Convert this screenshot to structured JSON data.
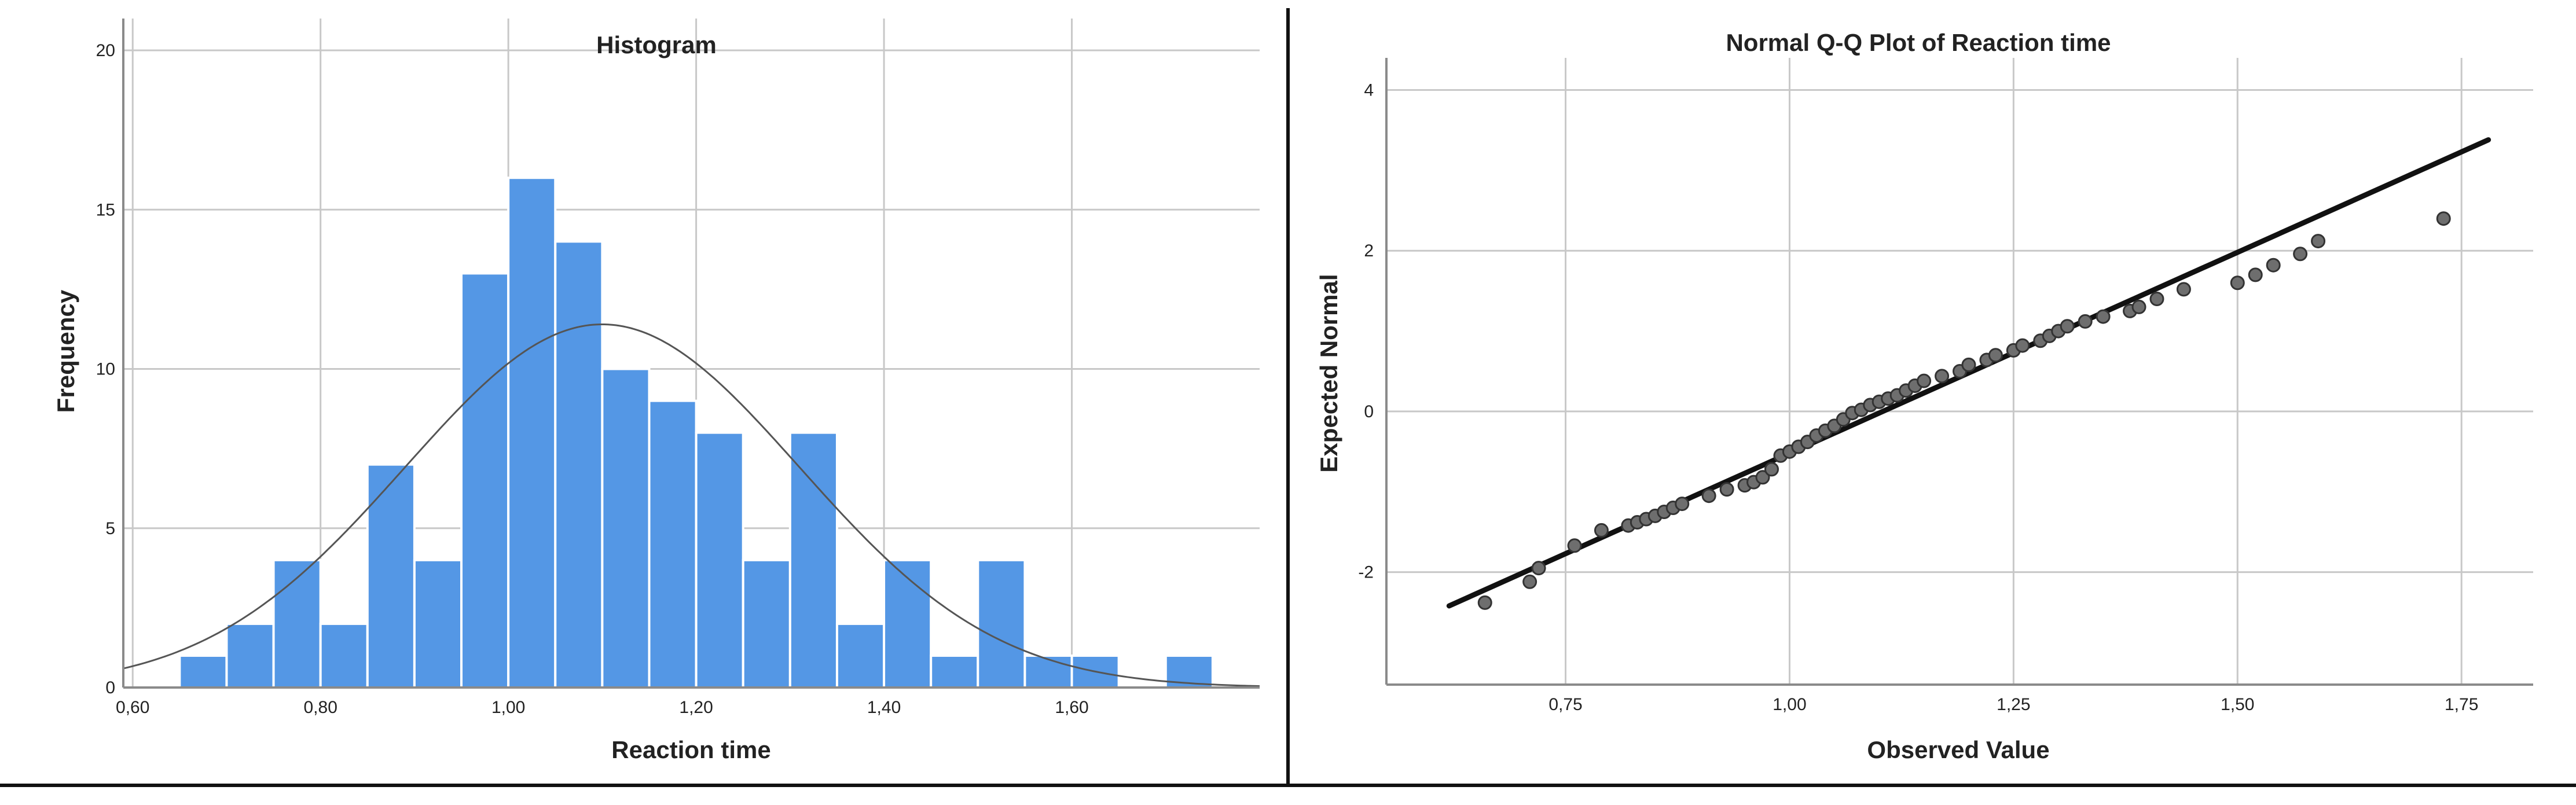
{
  "colors": {
    "bar_fill": "#5497e5",
    "bar_stroke": "#ffffff",
    "grid": "#c8c8c8",
    "axis": "#8a8a8a",
    "curve": "#555555",
    "point_fill": "#6e6e6e",
    "point_stroke": "#333333",
    "line": "#111111",
    "text": "#222222",
    "divider": "#111111"
  },
  "chart_data": [
    {
      "type": "bar",
      "subtype": "histogram",
      "title": "Histogram",
      "xlabel": "Reaction time",
      "ylabel": "Frequency",
      "xlim": [
        0.59,
        1.8
      ],
      "ylim": [
        0,
        21
      ],
      "xticks": [
        0.6,
        0.8,
        1.0,
        1.2,
        1.4,
        1.6
      ],
      "xtick_labels": [
        "0,60",
        "0,80",
        "1,00",
        "1,20",
        "1,40",
        "1,60"
      ],
      "yticks": [
        0,
        5,
        10,
        15,
        20
      ],
      "ytick_labels": [
        "0",
        "5",
        "10",
        "15",
        "20"
      ],
      "bin_edges": [
        0.65,
        0.7,
        0.75,
        0.8,
        0.85,
        0.9,
        0.95,
        1.0,
        1.05,
        1.1,
        1.15,
        1.2,
        1.25,
        1.3,
        1.35,
        1.4,
        1.45,
        1.5,
        1.55,
        1.6,
        1.65,
        1.7,
        1.75
      ],
      "counts": [
        1,
        2,
        4,
        2,
        7,
        4,
        13,
        16,
        14,
        10,
        9,
        8,
        4,
        8,
        2,
        4,
        1,
        4,
        1,
        1,
        0,
        1
      ],
      "normal_curve": {
        "mean": 1.1,
        "peak": 11.4,
        "sd": 0.21
      },
      "grid": true
    },
    {
      "type": "scatter",
      "subtype": "normal-qq",
      "title": "Normal Q-Q Plot of Reaction time",
      "xlabel": "Observed Value",
      "ylabel": "Expected Normal",
      "xlim": [
        0.55,
        1.83
      ],
      "ylim": [
        -3.4,
        4.4
      ],
      "xticks": [
        0.75,
        1.0,
        1.25,
        1.5,
        1.75
      ],
      "xtick_labels": [
        "0,75",
        "1,00",
        "1,25",
        "1,50",
        "1,75"
      ],
      "yticks": [
        -2,
        0,
        2,
        4
      ],
      "ytick_labels": [
        "-2",
        "0",
        "2",
        "4"
      ],
      "points": [
        [
          0.66,
          -2.38
        ],
        [
          0.71,
          -2.12
        ],
        [
          0.72,
          -1.95
        ],
        [
          0.76,
          -1.67
        ],
        [
          0.79,
          -1.48
        ],
        [
          0.82,
          -1.42
        ],
        [
          0.83,
          -1.38
        ],
        [
          0.84,
          -1.34
        ],
        [
          0.85,
          -1.3
        ],
        [
          0.86,
          -1.25
        ],
        [
          0.87,
          -1.2
        ],
        [
          0.88,
          -1.15
        ],
        [
          0.91,
          -1.05
        ],
        [
          0.93,
          -0.97
        ],
        [
          0.95,
          -0.92
        ],
        [
          0.96,
          -0.88
        ],
        [
          0.97,
          -0.82
        ],
        [
          0.98,
          -0.72
        ],
        [
          0.99,
          -0.55
        ],
        [
          1.0,
          -0.5
        ],
        [
          1.01,
          -0.44
        ],
        [
          1.02,
          -0.38
        ],
        [
          1.03,
          -0.3
        ],
        [
          1.04,
          -0.24
        ],
        [
          1.05,
          -0.18
        ],
        [
          1.06,
          -0.1
        ],
        [
          1.07,
          -0.02
        ],
        [
          1.08,
          0.02
        ],
        [
          1.09,
          0.08
        ],
        [
          1.1,
          0.12
        ],
        [
          1.11,
          0.16
        ],
        [
          1.12,
          0.2
        ],
        [
          1.13,
          0.26
        ],
        [
          1.14,
          0.32
        ],
        [
          1.15,
          0.38
        ],
        [
          1.17,
          0.44
        ],
        [
          1.19,
          0.5
        ],
        [
          1.2,
          0.58
        ],
        [
          1.22,
          0.64
        ],
        [
          1.23,
          0.7
        ],
        [
          1.25,
          0.76
        ],
        [
          1.26,
          0.82
        ],
        [
          1.28,
          0.88
        ],
        [
          1.29,
          0.94
        ],
        [
          1.3,
          1.0
        ],
        [
          1.31,
          1.06
        ],
        [
          1.33,
          1.12
        ],
        [
          1.35,
          1.18
        ],
        [
          1.38,
          1.25
        ],
        [
          1.39,
          1.3
        ],
        [
          1.41,
          1.4
        ],
        [
          1.44,
          1.52
        ],
        [
          1.5,
          1.6
        ],
        [
          1.52,
          1.7
        ],
        [
          1.54,
          1.82
        ],
        [
          1.57,
          1.96
        ],
        [
          1.59,
          2.12
        ],
        [
          1.73,
          2.4
        ]
      ],
      "reference_line": [
        [
          0.62,
          -2.42
        ],
        [
          1.78,
          3.38
        ]
      ],
      "grid": true
    }
  ]
}
